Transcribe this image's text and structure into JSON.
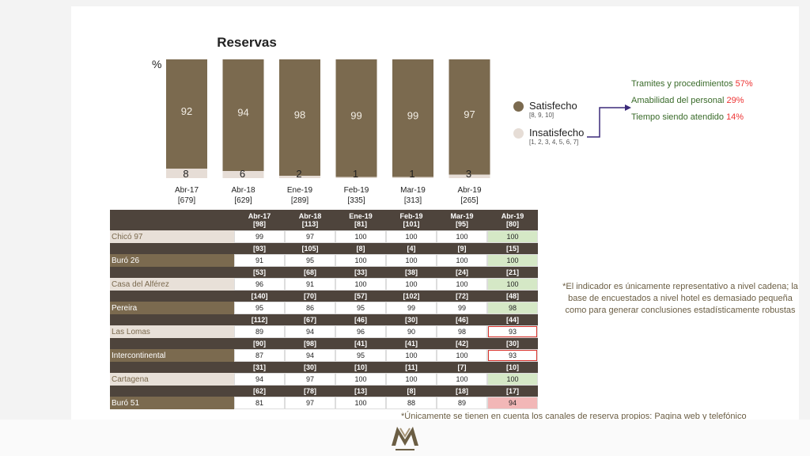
{
  "title": "Reservas",
  "pct_label": "%",
  "chart_data": {
    "type": "bar",
    "stacked": true,
    "categories": [
      "Abr-17",
      "Abr-18",
      "Ene-19",
      "Feb-19",
      "Mar-19",
      "Abr-19"
    ],
    "category_counts": [
      "[679]",
      "[629]",
      "[289]",
      "[335]",
      "[313]",
      "[265]"
    ],
    "series": [
      {
        "name": "Satisfecho",
        "values": [
          92,
          94,
          98,
          99,
          99,
          97
        ],
        "color": "#7b6a4f"
      },
      {
        "name": "Insatisfecho",
        "values": [
          8,
          6,
          2,
          1,
          1,
          3
        ],
        "color": "#e6ddd6"
      }
    ],
    "ylim": [
      0,
      100
    ],
    "title": "Reservas",
    "ylabel": "%"
  },
  "legend": {
    "satisfied": {
      "label": "Satisfecho",
      "scale": "[8, 9, 10]",
      "color": "#7b6a4f"
    },
    "unsatisfied": {
      "label": "Insatisfecho",
      "scale": "[1, 2, 3, 4, 5, 6, 7]",
      "color": "#e6ddd6"
    }
  },
  "reasons": [
    {
      "label": "Tramites y procedimientos ",
      "value": "57%"
    },
    {
      "label": "Amabilidad del personal ",
      "value": "29%"
    },
    {
      "label": "Tiempo siendo atendido ",
      "value": "14%"
    }
  ],
  "table": {
    "columns": [
      "Abr-17",
      "Abr-18",
      "Ene-19",
      "Feb-19",
      "Mar-19",
      "Abr-19"
    ],
    "rows": [
      {
        "name": "Chicó 97",
        "counts": [
          "[98]",
          "[113]",
          "[81]",
          "[101]",
          "[95]",
          "[80]"
        ],
        "values": [
          "99",
          "97",
          "100",
          "100",
          "100",
          "100"
        ],
        "last_status": "good"
      },
      {
        "name": "Buró 26",
        "counts": [
          "[93]",
          "[105]",
          "[8]",
          "[4]",
          "[9]",
          "[15]"
        ],
        "values": [
          "91",
          "95",
          "100",
          "100",
          "100",
          "100"
        ],
        "last_status": "good"
      },
      {
        "name": "Casa del Alférez",
        "counts": [
          "[53]",
          "[68]",
          "[33]",
          "[38]",
          "[24]",
          "[21]"
        ],
        "values": [
          "96",
          "91",
          "100",
          "100",
          "100",
          "100"
        ],
        "last_status": "good"
      },
      {
        "name": "Pereira",
        "counts": [
          "[140]",
          "[70]",
          "[57]",
          "[102]",
          "[72]",
          "[48]"
        ],
        "values": [
          "95",
          "86",
          "95",
          "99",
          "99",
          "98"
        ],
        "last_status": "good"
      },
      {
        "name": "Las Lomas",
        "counts": [
          "[112]",
          "[67]",
          "[46]",
          "[30]",
          "[46]",
          "[44]"
        ],
        "values": [
          "89",
          "94",
          "96",
          "90",
          "98",
          "93"
        ],
        "last_status": "bad"
      },
      {
        "name": "Intercontinental",
        "counts": [
          "[90]",
          "[98]",
          "[41]",
          "[41]",
          "[42]",
          "[30]"
        ],
        "values": [
          "87",
          "94",
          "95",
          "100",
          "100",
          "93"
        ],
        "last_status": "bad"
      },
      {
        "name": "Cartagena",
        "counts": [
          "[31]",
          "[30]",
          "[10]",
          "[11]",
          "[7]",
          "[10]"
        ],
        "values": [
          "94",
          "97",
          "100",
          "100",
          "100",
          "100"
        ],
        "last_status": "good"
      },
      {
        "name": "Buró 51",
        "counts": [
          "[62]",
          "[78]",
          "[13]",
          "[8]",
          "[18]",
          "[17]"
        ],
        "values": [
          "81",
          "97",
          "100",
          "88",
          "89",
          "94"
        ],
        "last_status": "badfill"
      }
    ],
    "row_label_style": [
      "light",
      "dark",
      "light",
      "dark",
      "light",
      "dark",
      "light",
      "dark"
    ]
  },
  "note": "*El indicador es únicamente representativo a nivel cadena; la base de encuestados a nivel hotel es demasiado pequeña como para generar conclusiones estadísticamente robustas",
  "footnote": "*Únicamente se tienen en cuenta los canales de reserva propios: Pagina web y telefónico"
}
